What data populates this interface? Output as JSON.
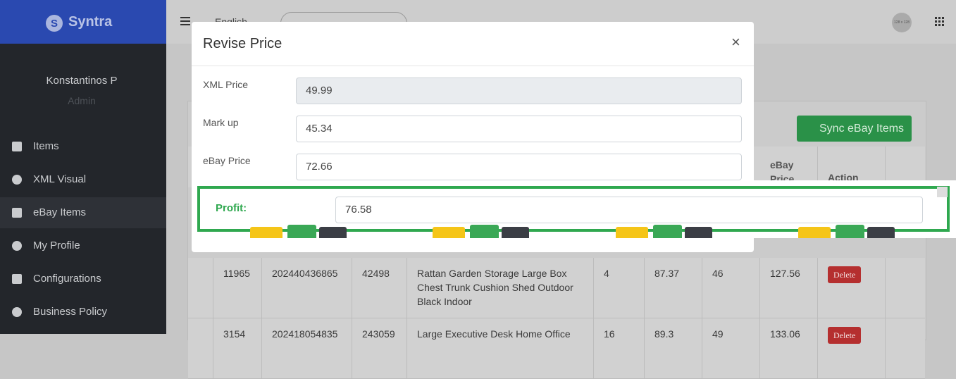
{
  "sidebar": {
    "brand": "Syntra",
    "user": {
      "name": "Konstantinos P",
      "role": "Admin"
    },
    "menu": [
      "Items",
      "XML Visual",
      "eBay Items",
      "My Profile",
      "Configurations",
      "Business Policy"
    ]
  },
  "topbar": {
    "language": "English",
    "avatar": "128 x 128"
  },
  "page": {
    "sync_button": "Sync eBay Items",
    "table": {
      "headers": {
        "ebay_price": "eBay Price",
        "action": "Action"
      },
      "rows": [
        {
          "id": 11965,
          "item_id": 202440436865,
          "sku": 42498,
          "title": "Rattan Garden Storage Large Box Chest Trunk Cushion Shed Outdoor Black Indoor",
          "qty": 4,
          "price": 87.37,
          "markup": 46,
          "ebay_price": 127.56,
          "action": "Delete"
        },
        {
          "id": 3154,
          "item_id": 202418054835,
          "sku": 243059,
          "title": "Large Executive Desk Home Office",
          "qty": 16,
          "price": 89.3,
          "markup": 49,
          "ebay_price": 133.06,
          "action": "Delete"
        }
      ]
    }
  },
  "modal": {
    "title": "Revise Price",
    "close": "×",
    "fields": [
      {
        "label": "XML Price",
        "value": 49.99
      },
      {
        "label": "Mark up",
        "value": 45.34
      },
      {
        "label": "eBay Price",
        "value": 72.66
      }
    ],
    "profit": {
      "label": "Profit:",
      "value": 76.58
    }
  }
}
